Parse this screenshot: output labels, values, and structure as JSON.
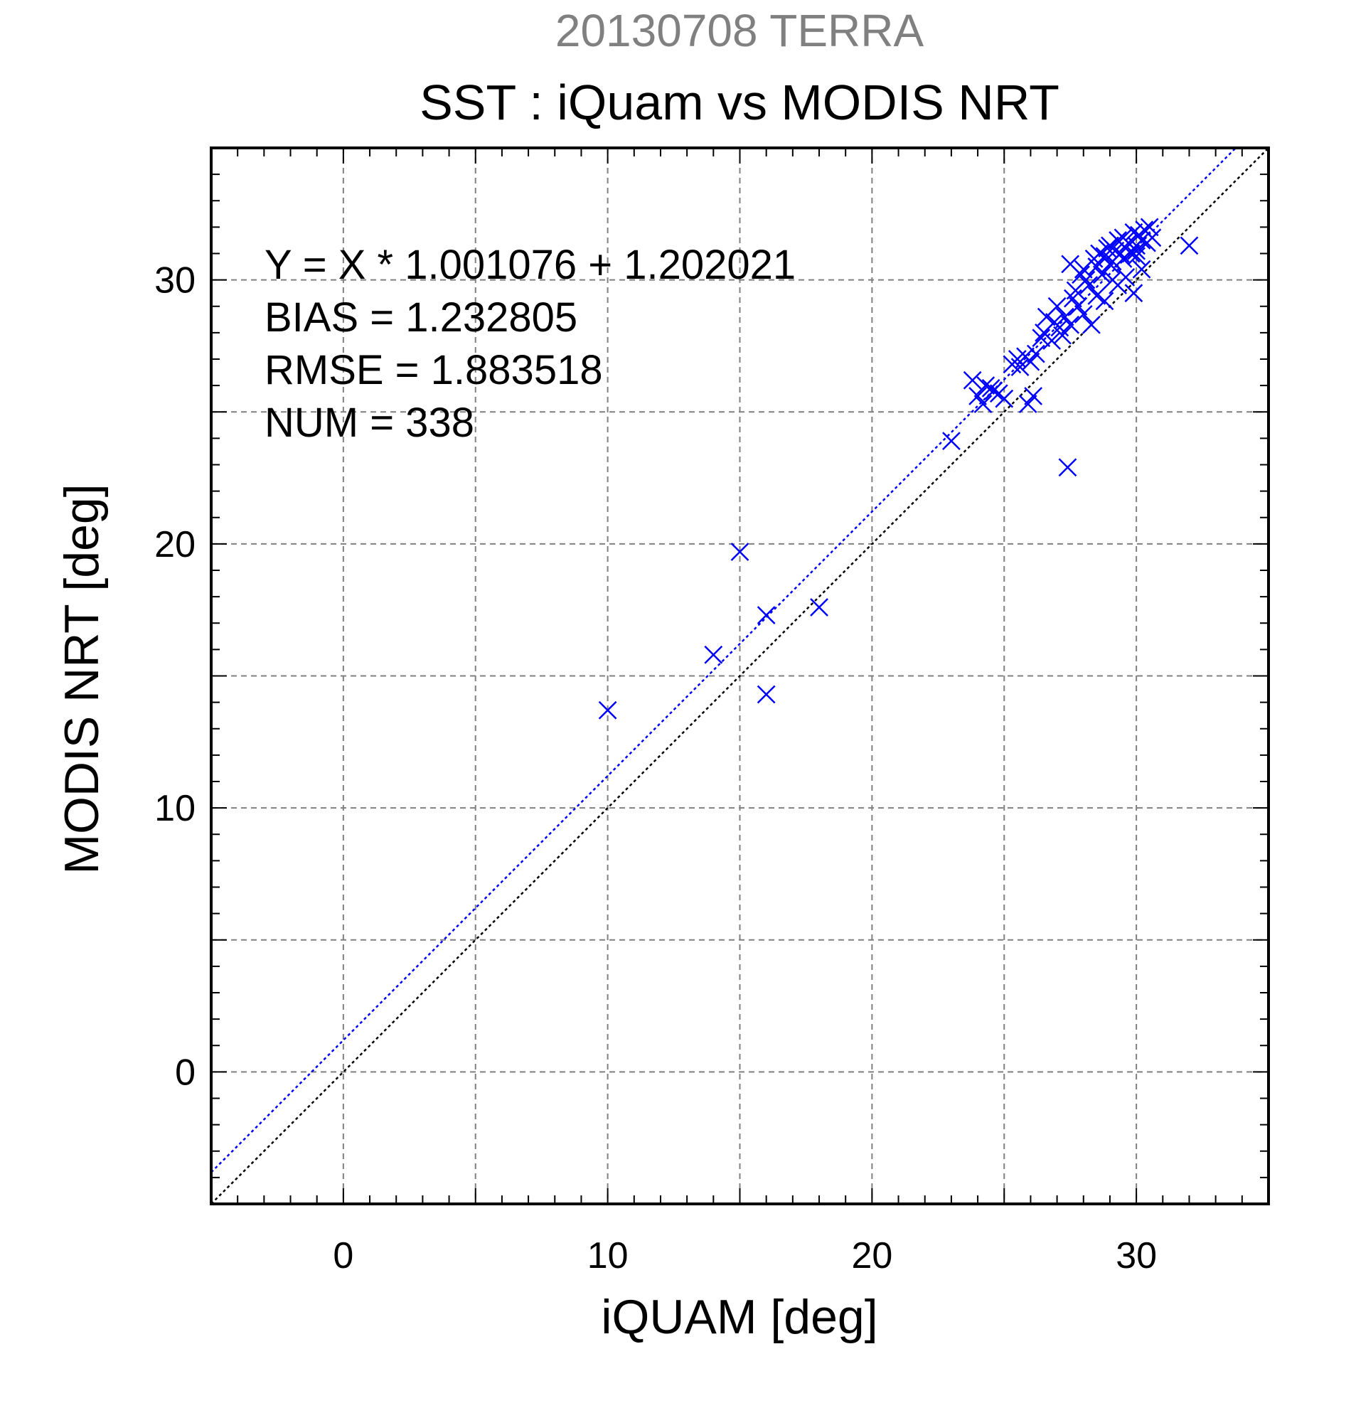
{
  "chart_data": {
    "type": "scatter",
    "title": "20130708 TERRA",
    "subtitle": "SST : iQuam vs MODIS NRT",
    "xlabel": "iQUAM [deg]",
    "ylabel": "MODIS NRT [deg]",
    "xlim": [
      -5,
      35
    ],
    "ylim": [
      -5,
      35
    ],
    "xticks": [
      "0",
      "10",
      "20",
      "30"
    ],
    "yticks": [
      "0",
      "10",
      "20",
      "30"
    ],
    "grid": true,
    "annotations": [
      "Y = X * 1.001076 + 1.202021",
      "BIAS = 1.232805",
      "RMSE = 1.883518",
      "NUM = 338"
    ],
    "fit": {
      "slope": 1.001076,
      "intercept": 1.202021
    },
    "marker_color": "#0000ff",
    "fit_line_color": "#0000ff",
    "identity_line_color": "#000000",
    "series": [
      {
        "marker": "x",
        "x": [
          10.0,
          14.0,
          15.0,
          16.0,
          16.0,
          18.0,
          23.0,
          23.8,
          24.0,
          24.2,
          24.3,
          24.5,
          24.6,
          24.8,
          25.0,
          25.3,
          25.5,
          25.6,
          25.8,
          25.9,
          26.0,
          26.1,
          26.2,
          26.4,
          26.5,
          26.6,
          26.8,
          26.9,
          27.0,
          27.1,
          27.2,
          27.3,
          27.4,
          27.5,
          27.5,
          27.6,
          27.7,
          27.8,
          27.9,
          28.0,
          28.0,
          28.1,
          28.2,
          28.3,
          28.4,
          28.5,
          28.5,
          28.6,
          28.7,
          28.8,
          28.9,
          29.0,
          29.0,
          29.1,
          29.2,
          29.3,
          29.4,
          29.5,
          29.5,
          29.6,
          29.7,
          29.8,
          29.9,
          30.0,
          30.0,
          30.1,
          30.2,
          30.3,
          30.4,
          30.5,
          30.6,
          29.3,
          29.6,
          29.9,
          30.2,
          29.1,
          28.8,
          30.0,
          32.0
        ],
        "y": [
          13.7,
          15.8,
          19.7,
          17.3,
          14.3,
          17.6,
          23.9,
          26.2,
          25.6,
          25.3,
          26.0,
          25.9,
          25.8,
          25.7,
          25.5,
          26.8,
          27.0,
          26.7,
          27.1,
          25.3,
          26.9,
          25.6,
          27.2,
          27.8,
          28.0,
          28.6,
          27.7,
          28.4,
          29.0,
          28.2,
          27.9,
          28.6,
          22.9,
          28.3,
          30.6,
          29.3,
          29.6,
          29.0,
          30.2,
          28.7,
          30.4,
          30.0,
          29.8,
          28.3,
          30.8,
          30.5,
          29.4,
          31.0,
          30.2,
          30.9,
          31.2,
          30.6,
          31.3,
          30.7,
          31.1,
          31.5,
          31.0,
          30.8,
          31.6,
          31.2,
          31.4,
          31.0,
          31.8,
          31.3,
          30.9,
          31.7,
          31.5,
          31.9,
          31.4,
          32.0,
          31.6,
          29.8,
          30.1,
          29.5,
          30.4,
          30.0,
          29.2,
          31.1,
          31.3
        ]
      }
    ]
  }
}
